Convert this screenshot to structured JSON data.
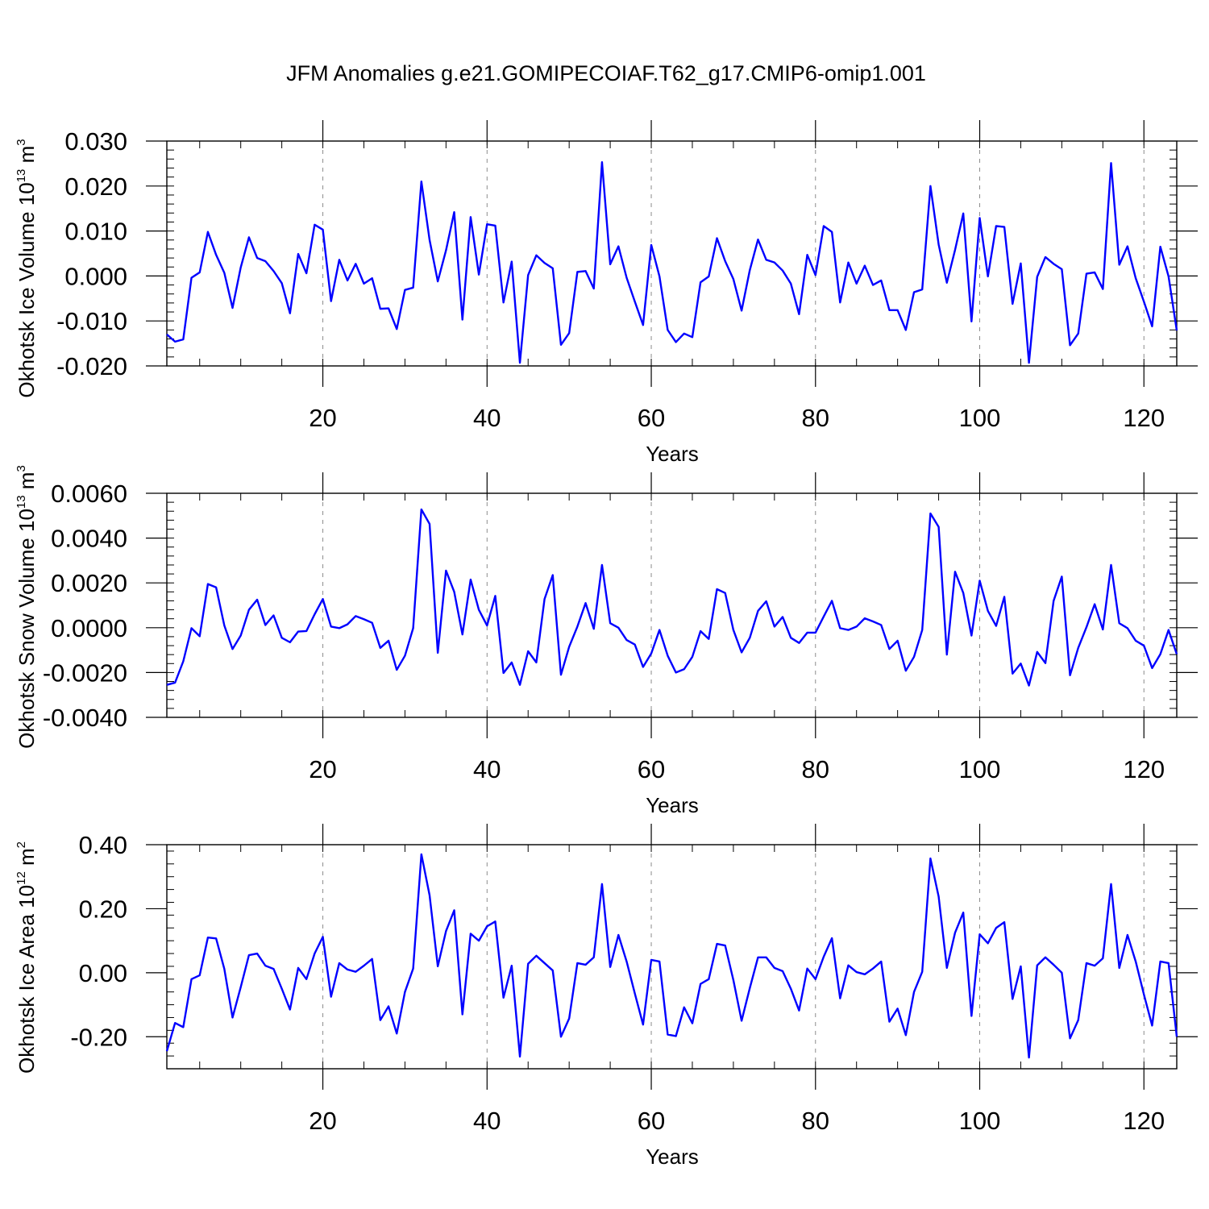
{
  "title": "JFM Anomalies g.e21.GOMIPECOIAF.T62_g17.CMIP6-omip1.001",
  "colors": {
    "line": "#0000ff",
    "axis": "#000000",
    "grid": "#8c8c8c"
  },
  "chart_data": [
    {
      "type": "line",
      "ylabel_main": "Okhotsk Ice Volume 10",
      "ylabel_sup": "13",
      "ylabel_unit": " m",
      "ylabel_unit_sup": "3",
      "xlabel": "Years",
      "xlim": [
        1,
        124
      ],
      "ylim": [
        -0.02,
        0.03
      ],
      "yticks": [
        -0.02,
        -0.01,
        0.0,
        0.01,
        0.02,
        0.03
      ],
      "ytick_labels": [
        "-0.020",
        "-0.010",
        "0.000",
        "0.010",
        "0.020",
        "0.030"
      ],
      "xticks": [
        20,
        40,
        60,
        80,
        100,
        120
      ],
      "xtick_labels": [
        "20",
        "40",
        "60",
        "80",
        "100",
        "120"
      ],
      "grid_x": true,
      "x_start": 1,
      "values": [
        -0.013,
        -0.0146,
        -0.0141,
        -0.0004,
        0.0008,
        0.0098,
        0.0047,
        0.0007,
        -0.0071,
        0.0019,
        0.0086,
        0.004,
        0.0033,
        0.0011,
        -0.0016,
        -0.0083,
        0.0049,
        0.0006,
        0.0114,
        0.0103,
        -0.0056,
        0.0036,
        -0.001,
        0.0027,
        -0.0017,
        -0.0005,
        -0.0073,
        -0.0072,
        -0.0118,
        -0.0031,
        -0.0026,
        0.021,
        0.008,
        -0.0012,
        0.0057,
        0.0142,
        -0.0097,
        0.0131,
        0.0003,
        0.0115,
        0.0112,
        -0.0059,
        0.0032,
        -0.0193,
        0.0002,
        0.0046,
        0.0029,
        0.0017,
        -0.0153,
        -0.0127,
        0.0009,
        0.0011,
        -0.0028,
        0.0253,
        0.0026,
        0.0066,
        -0.0004,
        -0.0057,
        -0.0109,
        0.0069,
        -0.0001,
        -0.012,
        -0.0147,
        -0.0128,
        -0.0136,
        -0.0014,
        -0.0001,
        0.0084,
        0.0033,
        -0.0007,
        -0.0077,
        0.0013,
        0.0081,
        0.0036,
        0.003,
        0.0012,
        -0.0017,
        -0.0085,
        0.0047,
        0.0002,
        0.0111,
        0.0098,
        -0.0059,
        0.003,
        -0.0017,
        0.0023,
        -0.002,
        -0.001,
        -0.0076,
        -0.0076,
        -0.012,
        -0.0036,
        -0.003,
        0.02,
        0.007,
        -0.0015,
        0.0058,
        0.0139,
        -0.0101,
        0.0129,
        -0.0001,
        0.0111,
        0.0109,
        -0.0062,
        0.0028,
        -0.0193,
        -0.0002,
        0.0042,
        0.0027,
        0.0015,
        -0.0154,
        -0.0128,
        0.0005,
        0.0008,
        -0.0029,
        0.0251,
        0.0025,
        0.0066,
        -0.0005,
        -0.0057,
        -0.0112,
        0.0065,
        -0.0001,
        -0.0121
      ]
    },
    {
      "type": "line",
      "ylabel_main": "Okhotsk Snow Volume 10",
      "ylabel_sup": "13",
      "ylabel_unit": " m",
      "ylabel_unit_sup": "3",
      "xlabel": "Years",
      "xlim": [
        1,
        124
      ],
      "ylim": [
        -0.004,
        0.006
      ],
      "yticks": [
        -0.004,
        -0.002,
        0.0,
        0.002,
        0.004,
        0.006
      ],
      "ytick_labels": [
        "-0.0040",
        "-0.0020",
        "0.0000",
        "0.0020",
        "0.0040",
        "0.0060"
      ],
      "xticks": [
        20,
        40,
        60,
        80,
        100,
        120
      ],
      "xtick_labels": [
        "20",
        "40",
        "60",
        "80",
        "100",
        "120"
      ],
      "grid_x": true,
      "x_start": 1,
      "values": [
        -0.00255,
        -0.00245,
        -0.0015,
        -2e-05,
        -0.00038,
        0.00195,
        0.0018,
        0.0001,
        -0.00095,
        -0.00035,
        0.0008,
        0.00125,
        0.00012,
        0.00055,
        -0.00045,
        -0.00065,
        -0.00017,
        -0.00015,
        0.0006,
        0.00128,
        5e-05,
        -2e-05,
        0.00015,
        0.00052,
        0.00038,
        0.00022,
        -0.0009,
        -0.00058,
        -0.00188,
        -0.00125,
        -2e-05,
        0.00528,
        0.00463,
        -0.00112,
        0.00255,
        0.0016,
        -0.0003,
        0.00215,
        0.0008,
        0.0001,
        0.00142,
        -0.00202,
        -0.00155,
        -0.00255,
        -0.00105,
        -0.00155,
        0.00128,
        0.00235,
        -0.0021,
        -0.00085,
        5e-05,
        0.0011,
        -5e-05,
        0.0028,
        0.0002,
        0.0,
        -0.00055,
        -0.00075,
        -0.00175,
        -0.00115,
        -0.0001,
        -0.00125,
        -0.002,
        -0.00185,
        -0.0013,
        -0.00015,
        -0.0005,
        0.00172,
        0.00155,
        -0.0001,
        -0.0011,
        -0.00045,
        0.00075,
        0.00118,
        5e-05,
        0.00048,
        -0.00045,
        -0.00068,
        -0.00022,
        -0.00022,
        0.0005,
        0.0012,
        -2e-05,
        -0.0001,
        5e-05,
        0.00042,
        0.00028,
        0.00012,
        -0.00095,
        -0.00058,
        -0.00192,
        -0.0013,
        -0.0001,
        0.0051,
        0.0045,
        -0.0012,
        0.0025,
        0.00155,
        -0.00035,
        0.0021,
        0.00075,
        8e-05,
        0.00138,
        -0.00205,
        -0.0016,
        -0.00258,
        -0.00108,
        -0.00158,
        0.0012,
        0.00228,
        -0.00212,
        -0.0009,
        2e-05,
        0.00105,
        -8e-05,
        0.0028,
        0.0002,
        -2e-05,
        -0.00058,
        -0.0008,
        -0.0018,
        -0.00118,
        -0.0001,
        -0.00118
      ]
    },
    {
      "type": "line",
      "ylabel_main": "Okhotsk Ice Area 10",
      "ylabel_sup": "12",
      "ylabel_unit": " m",
      "ylabel_unit_sup": "2",
      "xlabel": "Years",
      "xlim": [
        1,
        124
      ],
      "ylim": [
        -0.3,
        0.4
      ],
      "yticks": [
        -0.2,
        0.0,
        0.2,
        0.4
      ],
      "ytick_labels": [
        "-0.20",
        "0.00",
        "0.20",
        "0.40"
      ],
      "xticks": [
        20,
        40,
        60,
        80,
        100,
        120
      ],
      "xtick_labels": [
        "20",
        "40",
        "60",
        "80",
        "100",
        "120"
      ],
      "grid_x": true,
      "x_start": 1,
      "values": [
        -0.245,
        -0.157,
        -0.17,
        -0.02,
        -0.008,
        0.11,
        0.107,
        0.012,
        -0.14,
        -0.045,
        0.055,
        0.06,
        0.022,
        0.012,
        -0.05,
        -0.115,
        0.015,
        -0.02,
        0.06,
        0.112,
        -0.075,
        0.03,
        0.01,
        0.003,
        0.022,
        0.043,
        -0.148,
        -0.105,
        -0.19,
        -0.06,
        0.013,
        0.37,
        0.242,
        0.02,
        0.13,
        0.195,
        -0.13,
        0.122,
        0.1,
        0.145,
        0.16,
        -0.078,
        0.022,
        -0.262,
        0.028,
        0.053,
        0.03,
        0.007,
        -0.2,
        -0.143,
        0.03,
        0.025,
        0.048,
        0.277,
        0.018,
        0.118,
        0.035,
        -0.065,
        -0.162,
        0.04,
        0.035,
        -0.193,
        -0.198,
        -0.108,
        -0.158,
        -0.035,
        -0.02,
        0.09,
        0.085,
        -0.023,
        -0.15,
        -0.048,
        0.048,
        0.048,
        0.015,
        0.005,
        -0.05,
        -0.118,
        0.013,
        -0.02,
        0.05,
        0.108,
        -0.08,
        0.023,
        0.002,
        -0.005,
        0.013,
        0.035,
        -0.153,
        -0.112,
        -0.195,
        -0.06,
        0.003,
        0.357,
        0.238,
        0.015,
        0.125,
        0.188,
        -0.135,
        0.12,
        0.092,
        0.14,
        0.158,
        -0.082,
        0.02,
        -0.265,
        0.023,
        0.048,
        0.025,
        0.0,
        -0.205,
        -0.148,
        0.03,
        0.022,
        0.045,
        0.277,
        0.015,
        0.118,
        0.035,
        -0.068,
        -0.165,
        0.035,
        0.03,
        -0.2
      ]
    }
  ]
}
